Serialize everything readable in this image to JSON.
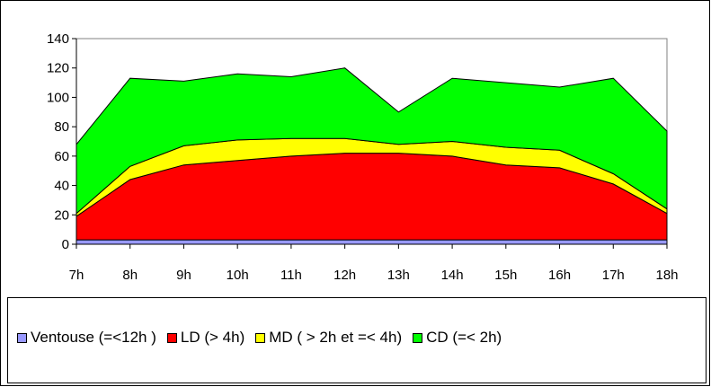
{
  "chart_data": {
    "type": "area",
    "stacked": true,
    "title": "",
    "xlabel": "",
    "ylabel": "",
    "categories": [
      "7h",
      "8h",
      "9h",
      "10h",
      "11h",
      "12h",
      "13h",
      "14h",
      "15h",
      "16h",
      "17h",
      "18h"
    ],
    "ylim": [
      0,
      140
    ],
    "yticks": [
      0,
      20,
      40,
      60,
      80,
      100,
      120,
      140
    ],
    "grid": false,
    "legend_position": "bottom",
    "series": [
      {
        "name": "Ventouse (=<12h )",
        "color": "#9999ff",
        "values": [
          3,
          3,
          3,
          3,
          3,
          3,
          3,
          3,
          3,
          3,
          3,
          3
        ]
      },
      {
        "name": "LD  (> 4h)",
        "color": "#ff0000",
        "values": [
          16,
          41,
          51,
          54,
          57,
          59,
          59,
          57,
          51,
          49,
          38,
          18
        ]
      },
      {
        "name": "MD ( > 2h et =< 4h)",
        "color": "#ffff00",
        "values": [
          2,
          9,
          13,
          14,
          12,
          10,
          6,
          10,
          12,
          12,
          7,
          3
        ]
      },
      {
        "name": "CD (=< 2h)",
        "color": "#00ff00",
        "values": [
          47,
          60,
          44,
          45,
          42,
          48,
          22,
          43,
          44,
          43,
          65,
          53
        ]
      }
    ]
  }
}
